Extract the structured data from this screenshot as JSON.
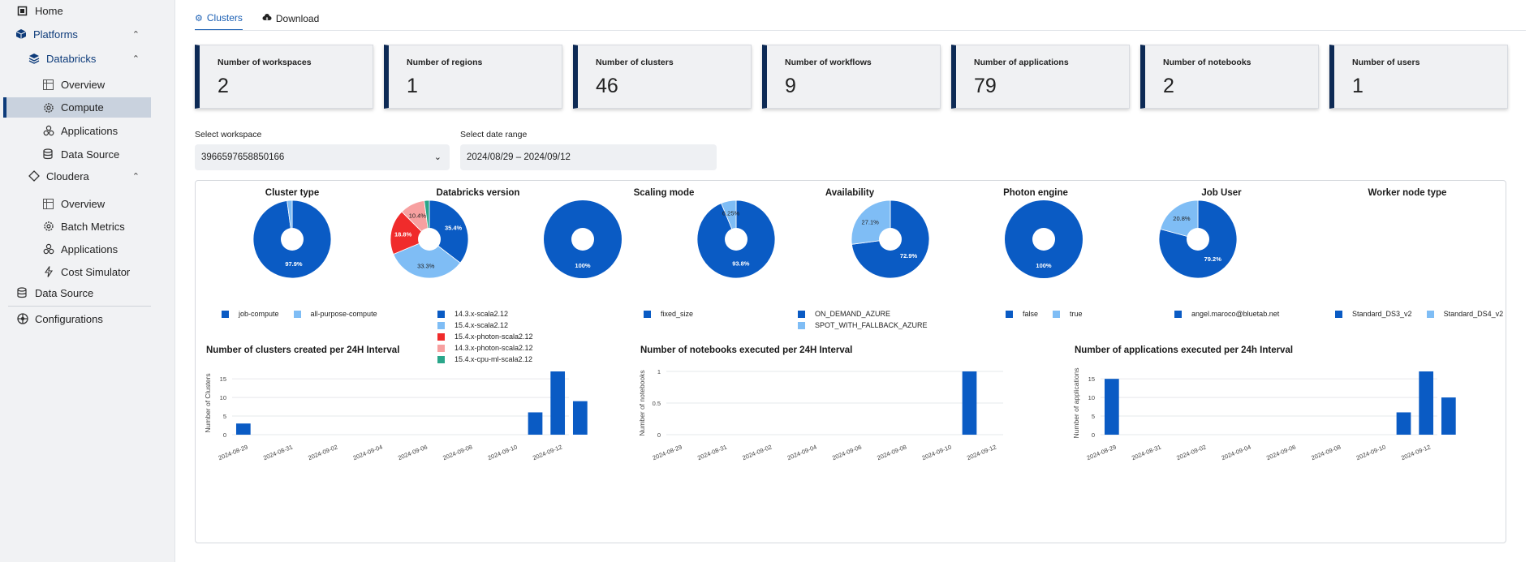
{
  "sidebar": {
    "home": "Home",
    "platforms": "Platforms",
    "databricks": "Databricks",
    "db_overview": "Overview",
    "db_compute": "Compute",
    "db_applications": "Applications",
    "db_datasource": "Data Source",
    "cloudera": "Cloudera",
    "cl_overview": "Overview",
    "cl_batch": "Batch Metrics",
    "cl_applications": "Applications",
    "cl_cost": "Cost Simulator",
    "datasource": "Data Source",
    "configurations": "Configurations"
  },
  "tabs": {
    "clusters": "Clusters",
    "download": "Download"
  },
  "stats": [
    {
      "label": "Number of workspaces",
      "value": "2"
    },
    {
      "label": "Number of regions",
      "value": "1"
    },
    {
      "label": "Number of clusters",
      "value": "46"
    },
    {
      "label": "Number of workflows",
      "value": "9"
    },
    {
      "label": "Number of applications",
      "value": "79"
    },
    {
      "label": "Number of notebooks",
      "value": "2"
    },
    {
      "label": "Number of users",
      "value": "1"
    }
  ],
  "filters": {
    "workspace_label": "Select workspace",
    "workspace_value": "3966597658850166",
    "date_label": "Select date range",
    "date_value": "2024/08/29 – 2024/09/12"
  },
  "colors": {
    "dark_blue": "#0a5bc4",
    "light_blue": "#7fbdf5",
    "red": "#f02b2b",
    "pink": "#f7a0a0",
    "teal": "#2aa68a",
    "navy": "#0d2a55"
  },
  "chart_data": [
    {
      "type": "pie",
      "title": "Cluster type",
      "labels": [
        "job-compute",
        "all-purpose-compute"
      ],
      "values": [
        97.9,
        2.1
      ],
      "colors": [
        "#0a5bc4",
        "#7fbdf5"
      ],
      "data_labels": [
        "97.9%",
        ""
      ]
    },
    {
      "type": "pie",
      "title": "Databricks version",
      "labels": [
        "14.3.x-scala2.12",
        "15.4.x-scala2.12",
        "15.4.x-photon-scala2.12",
        "14.3.x-photon-scala2.12",
        "15.4.x-cpu-ml-scala2.12"
      ],
      "values": [
        35.4,
        33.3,
        18.8,
        10.4,
        2.1
      ],
      "colors": [
        "#0a5bc4",
        "#7fbdf5",
        "#f02b2b",
        "#f7a0a0",
        "#2aa68a"
      ],
      "data_labels": [
        "35.4%",
        "33.3%",
        "18.8%",
        "10.4%",
        ""
      ]
    },
    {
      "type": "pie",
      "title": "Scaling mode",
      "labels": [
        "fixed_size"
      ],
      "values": [
        100
      ],
      "colors": [
        "#0a5bc4"
      ],
      "data_labels": [
        "100%"
      ]
    },
    {
      "type": "pie",
      "title": "Availability",
      "labels": [
        "ON_DEMAND_AZURE",
        "SPOT_WITH_FALLBACK_AZURE"
      ],
      "values": [
        93.8,
        6.25
      ],
      "colors": [
        "#0a5bc4",
        "#7fbdf5"
      ],
      "data_labels": [
        "93.8%",
        "6.25%"
      ]
    },
    {
      "type": "pie",
      "title": "Photon engine",
      "labels": [
        "false",
        "true"
      ],
      "values": [
        72.9,
        27.1
      ],
      "colors": [
        "#0a5bc4",
        "#7fbdf5"
      ],
      "data_labels": [
        "72.9%",
        "27.1%"
      ]
    },
    {
      "type": "pie",
      "title": "Job User",
      "labels": [
        "angel.maroco@bluetab.net"
      ],
      "values": [
        100
      ],
      "colors": [
        "#0a5bc4"
      ],
      "data_labels": [
        "100%"
      ]
    },
    {
      "type": "pie",
      "title": "Worker node type",
      "labels": [
        "Standard_DS3_v2",
        "Standard_DS4_v2"
      ],
      "values": [
        79.2,
        20.8
      ],
      "colors": [
        "#0a5bc4",
        "#7fbdf5"
      ],
      "data_labels": [
        "79.2%",
        "20.8%"
      ]
    },
    {
      "type": "bar",
      "title": "Number of clusters created per 24H  Interval",
      "ylabel": "Number of Clusters",
      "ylim": [
        0,
        17
      ],
      "yticks": [
        "0",
        "5",
        "10",
        "15"
      ],
      "ytick_values": [
        0,
        5,
        10,
        15
      ],
      "xticks": [
        "2024-08-29",
        "2024-08-31",
        "2024-09-02",
        "2024-09-04",
        "2024-09-06",
        "2024-09-08",
        "2024-09-10",
        "2024-09-12"
      ],
      "x": [
        "2024-08-29",
        "2024-09-11",
        "2024-09-12",
        "2024-09-13"
      ],
      "values": [
        3,
        6,
        17,
        9
      ]
    },
    {
      "type": "bar",
      "title": "Number of notebooks executed per 24H  Interval",
      "ylabel": "Number of notebooks",
      "ylim": [
        0,
        1
      ],
      "yticks": [
        "0",
        "0.5",
        "1"
      ],
      "ytick_values": [
        0,
        0.5,
        1
      ],
      "xticks": [
        "2024-08-29",
        "2024-08-31",
        "2024-09-02",
        "2024-09-04",
        "2024-09-06",
        "2024-09-08",
        "2024-09-10",
        "2024-09-12"
      ],
      "x": [
        "2024-09-11"
      ],
      "values": [
        1
      ]
    },
    {
      "type": "bar",
      "title": "Number of applications executed per 24h  Interval",
      "ylabel": "Number of applications",
      "ylim": [
        0,
        17
      ],
      "yticks": [
        "0",
        "5",
        "10",
        "15"
      ],
      "ytick_values": [
        0,
        5,
        10,
        15
      ],
      "xticks": [
        "2024-08-29",
        "2024-08-31",
        "2024-09-02",
        "2024-09-04",
        "2024-09-06",
        "2024-09-08",
        "2024-09-10",
        "2024-09-12"
      ],
      "x": [
        "2024-08-29",
        "2024-09-11",
        "2024-09-12",
        "2024-09-13"
      ],
      "values": [
        15,
        6,
        17,
        10
      ]
    }
  ]
}
